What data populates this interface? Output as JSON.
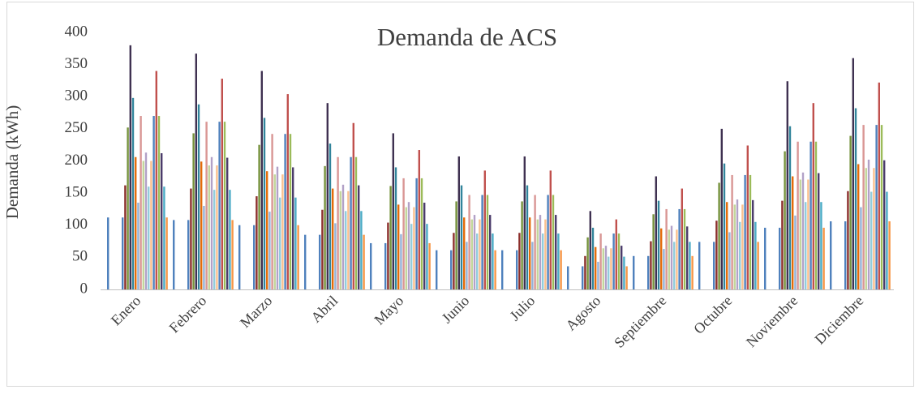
{
  "chart_data": {
    "type": "bar",
    "title": "Demanda de ACS",
    "y_label": "Demanda (kWh)",
    "categories": [
      "Enero",
      "Febrero",
      "Marzo",
      "Abril",
      "Mayo",
      "Junio",
      "Julio",
      "Agosto",
      "Septiembre",
      "Octubre",
      "Noviembre",
      "Diciembre"
    ],
    "ylim": [
      0,
      400
    ],
    "yticks": [
      0,
      50,
      100,
      150,
      200,
      250,
      300,
      350,
      400
    ],
    "grid": false,
    "series": [
      {
        "color": "#4f81bd",
        "values": [
          112,
          108,
          100,
          85,
          72,
          61,
          61,
          36,
          52,
          74,
          96,
          106
        ]
      },
      {
        "color": "#4f81bd",
        "values": [
          112,
          108,
          100,
          85,
          72,
          61,
          61,
          36,
          52,
          74,
          96,
          106
        ]
      },
      {
        "color": "#8c2f2c",
        "values": [
          162,
          157,
          145,
          124,
          104,
          88,
          88,
          52,
          75,
          107,
          138,
          153
        ]
      },
      {
        "color": "#76923c",
        "values": [
          252,
          243,
          225,
          192,
          161,
          137,
          137,
          81,
          117,
          166,
          215,
          239
        ]
      },
      {
        "color": "#3f3151",
        "values": [
          380,
          367,
          340,
          290,
          243,
          207,
          207,
          122,
          176,
          250,
          324,
          360
        ]
      },
      {
        "color": "#31849b",
        "values": [
          298,
          288,
          267,
          227,
          190,
          162,
          162,
          96,
          138,
          196,
          254,
          282
        ]
      },
      {
        "color": "#e46c0a",
        "values": [
          206,
          199,
          184,
          157,
          132,
          112,
          112,
          66,
          95,
          136,
          176,
          195
        ]
      },
      {
        "color": "#95b3d7",
        "values": [
          135,
          130,
          121,
          103,
          86,
          74,
          74,
          43,
          63,
          89,
          115,
          128
        ]
      },
      {
        "color": "#d99694",
        "values": [
          270,
          261,
          242,
          206,
          173,
          147,
          147,
          87,
          125,
          178,
          230,
          256
        ]
      },
      {
        "color": "#c3d69b",
        "values": [
          200,
          193,
          179,
          153,
          128,
          109,
          109,
          64,
          93,
          132,
          171,
          189
        ]
      },
      {
        "color": "#b2a1c7",
        "values": [
          213,
          206,
          191,
          163,
          136,
          116,
          116,
          68,
          99,
          140,
          182,
          202
        ]
      },
      {
        "color": "#92cddc",
        "values": [
          160,
          155,
          143,
          122,
          102,
          87,
          87,
          51,
          74,
          105,
          136,
          152
        ]
      },
      {
        "color": "#fac08f",
        "values": [
          200,
          193,
          179,
          153,
          128,
          109,
          109,
          64,
          93,
          132,
          171,
          189
        ]
      },
      {
        "color": "#4f81bd",
        "values": [
          270,
          261,
          242,
          206,
          173,
          147,
          147,
          87,
          125,
          178,
          230,
          256
        ]
      },
      {
        "color": "#c0504d",
        "values": [
          340,
          328,
          304,
          259,
          217,
          185,
          185,
          109,
          157,
          224,
          290,
          322
        ]
      },
      {
        "color": "#9bbb59",
        "values": [
          270,
          261,
          242,
          206,
          173,
          147,
          147,
          87,
          125,
          178,
          230,
          256
        ]
      },
      {
        "color": "#4b3b6b",
        "values": [
          212,
          205,
          190,
          162,
          135,
          116,
          116,
          68,
          98,
          139,
          181,
          201
        ]
      },
      {
        "color": "#4bacc6",
        "values": [
          160,
          155,
          143,
          122,
          102,
          87,
          87,
          51,
          74,
          105,
          136,
          152
        ]
      },
      {
        "color": "#f79646",
        "values": [
          112,
          108,
          100,
          85,
          72,
          61,
          61,
          36,
          52,
          74,
          96,
          106
        ]
      }
    ]
  }
}
